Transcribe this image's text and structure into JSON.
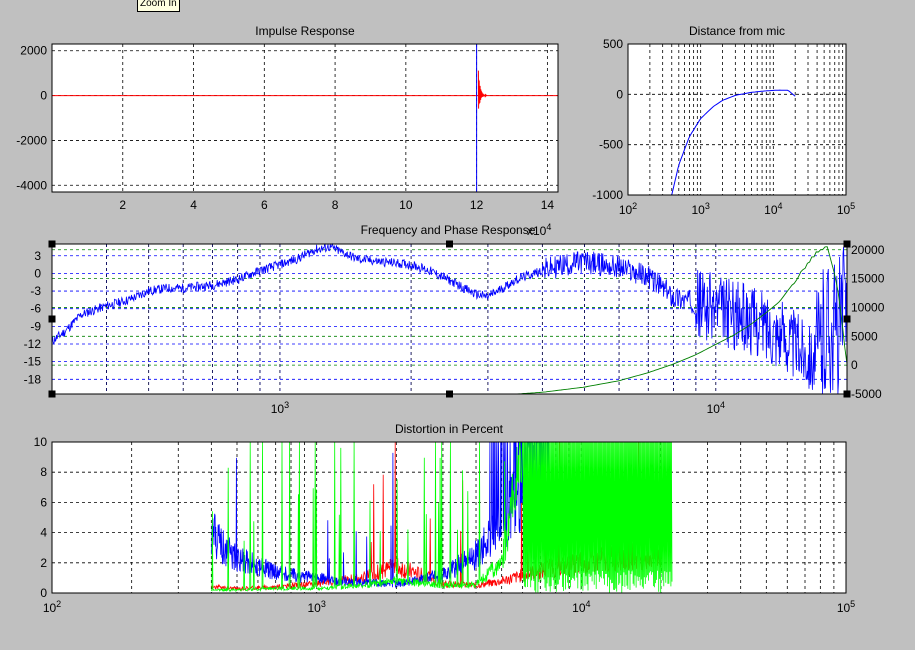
{
  "tooltip": "Zoom In",
  "colors": {
    "blue": "#0000ff",
    "red": "#ff0000",
    "green": "#00ff00",
    "dark_green": "#008000",
    "background": "#c0c0c0"
  },
  "chart_data": [
    {
      "type": "line",
      "title": "Impulse Response",
      "xlim": [
        0,
        14.3
      ],
      "ylim": [
        -4300,
        2300
      ],
      "xticks": [
        "2",
        "4",
        "6",
        "8",
        "10",
        "12",
        "14"
      ],
      "yticks": [
        "2000",
        "0",
        "-2000",
        "-4000"
      ],
      "grid": true,
      "series": [
        {
          "color": "red",
          "baseline": 0,
          "peak_x": 12.07,
          "peak_max": 1400,
          "peak_min": -800
        },
        {
          "color": "blue",
          "x": 12.0,
          "y_max": 2300,
          "y_min": -4300
        }
      ]
    },
    {
      "type": "line",
      "title": "Distance from mic",
      "xscale": "log",
      "xlim": [
        100,
        100000
      ],
      "ylim": [
        -1000,
        500
      ],
      "xticks": [
        "10^2",
        "10^3",
        "10^4",
        "10^5"
      ],
      "yticks": [
        "500",
        "0",
        "-500",
        "-1000"
      ],
      "grid": true,
      "series": [
        {
          "color": "blue",
          "x": [
            400,
            500,
            700,
            1000,
            1500,
            2000,
            3000,
            5000,
            8000,
            12000,
            16000,
            20000
          ],
          "y": [
            -1000,
            -700,
            -420,
            -240,
            -120,
            -60,
            -10,
            20,
            35,
            42,
            40,
            -20
          ]
        }
      ]
    },
    {
      "type": "line",
      "title": "Frequency and Phase Response",
      "xscale": "log",
      "xlim": [
        300,
        20000
      ],
      "ylim": [
        -20.5,
        5
      ],
      "y2lim": [
        -5000,
        21000
      ],
      "xticks": [
        "10^3",
        "10^4"
      ],
      "yticks": [
        "3",
        "0",
        "-3",
        "-6",
        "-9",
        "-12",
        "-15",
        "-18"
      ],
      "y2ticks": [
        "20000",
        "15000",
        "10000",
        "5000",
        "0",
        "-5000"
      ],
      "y2exponent": "x10^4",
      "grid": true,
      "series": [
        {
          "color": "blue",
          "x": [
            300,
            320,
            350,
            400,
            450,
            500,
            550,
            600,
            700,
            800,
            900,
            1000,
            1100,
            1200,
            1300,
            1400,
            1500,
            1700,
            2000,
            2200,
            2500,
            2800,
            3000,
            3500,
            4000,
            4500,
            5000,
            5500,
            6000,
            7000,
            8000,
            9000,
            10000,
            11000,
            12000,
            13000,
            14000,
            15000,
            16000,
            17000,
            18000,
            19000,
            20000
          ],
          "y": [
            -11.5,
            -10,
            -7,
            -5.5,
            -4.5,
            -3,
            -2.5,
            -2.5,
            -2,
            -1,
            0.5,
            1.5,
            2.5,
            4,
            4.5,
            3.5,
            2.5,
            2,
            1.5,
            0.5,
            -1.5,
            -3.5,
            -4,
            -1,
            0.5,
            1.5,
            2,
            1.5,
            1,
            -0.5,
            -4,
            -5,
            -6,
            -7,
            -8,
            -9,
            -10,
            -12,
            -13,
            -15,
            -8,
            -10,
            -5
          ]
        },
        {
          "color": "dark_green",
          "axis": "y2",
          "x": [
            3500,
            4000,
            5000,
            6000,
            7000,
            8000,
            9000,
            10000,
            11000,
            12000,
            13000,
            14000,
            15000,
            16000,
            17000,
            18000,
            19000,
            20000
          ],
          "y": [
            -5000,
            -4700,
            -3800,
            -2700,
            -1300,
            200,
            1800,
            3600,
            5200,
            7000,
            9000,
            11000,
            14000,
            17000,
            19500,
            20500,
            14000,
            0
          ]
        }
      ]
    },
    {
      "type": "line",
      "title": "Distortion in Percent",
      "xscale": "log",
      "xlim": [
        100,
        100000
      ],
      "ylim": [
        0,
        10
      ],
      "xticks": [
        "10^2",
        "10^3",
        "10^4",
        "10^5"
      ],
      "yticks": [
        "10",
        "8",
        "6",
        "4",
        "2",
        "0"
      ],
      "grid": true,
      "series": [
        {
          "color": "blue",
          "x": [
            400,
            450,
            500,
            600,
            700,
            800,
            1000,
            1200,
            1500,
            2000,
            3000,
            4000,
            5000,
            6000,
            7000,
            7500
          ],
          "y": [
            4,
            3,
            2.3,
            1.8,
            1.4,
            1.2,
            1,
            0.8,
            0.7,
            0.6,
            1.2,
            2.5,
            4.5,
            7,
            10,
            10
          ]
        },
        {
          "color": "red",
          "x": [
            400,
            500,
            700,
            1000,
            1500,
            2000,
            2500,
            3000,
            4000,
            5000,
            7000,
            10000,
            15000,
            20000
          ],
          "y": [
            0.4,
            0.3,
            0.4,
            0.6,
            1,
            1.8,
            1.2,
            0.6,
            0.5,
            0.8,
            1.5,
            2,
            2.5,
            2.5
          ]
        },
        {
          "color": "green",
          "x": [
            400,
            500,
            700,
            1000,
            1500,
            2000,
            3000,
            4000,
            5000,
            6000,
            7000,
            8000,
            10000,
            15000,
            22000
          ],
          "y": [
            0.2,
            0.2,
            0.3,
            0.3,
            0.5,
            0.8,
            0.5,
            0.6,
            2,
            10,
            10,
            10,
            10,
            10,
            10
          ]
        }
      ]
    }
  ]
}
